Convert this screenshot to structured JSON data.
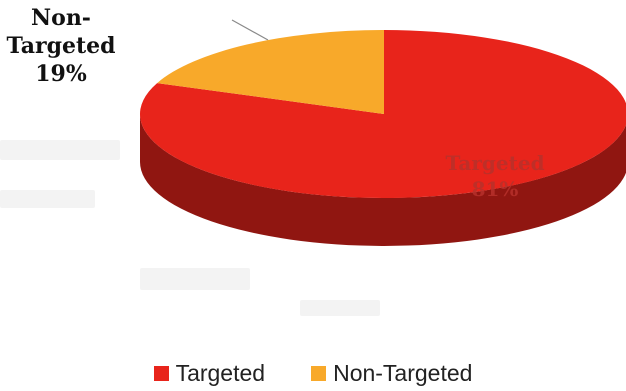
{
  "chart_data": {
    "type": "pie",
    "title": "",
    "categories": [
      "Targeted",
      "Non-Targeted"
    ],
    "values": [
      81,
      19
    ],
    "unit": "%",
    "colors": [
      "#e8241b",
      "#f8a92a"
    ],
    "data_labels": [
      {
        "name": "Targeted",
        "value": "81%"
      },
      {
        "name": "Non-Targeted",
        "value": "19%"
      }
    ],
    "legend": {
      "position": "bottom",
      "items": [
        "Targeted",
        "Non-Targeted"
      ]
    }
  }
}
